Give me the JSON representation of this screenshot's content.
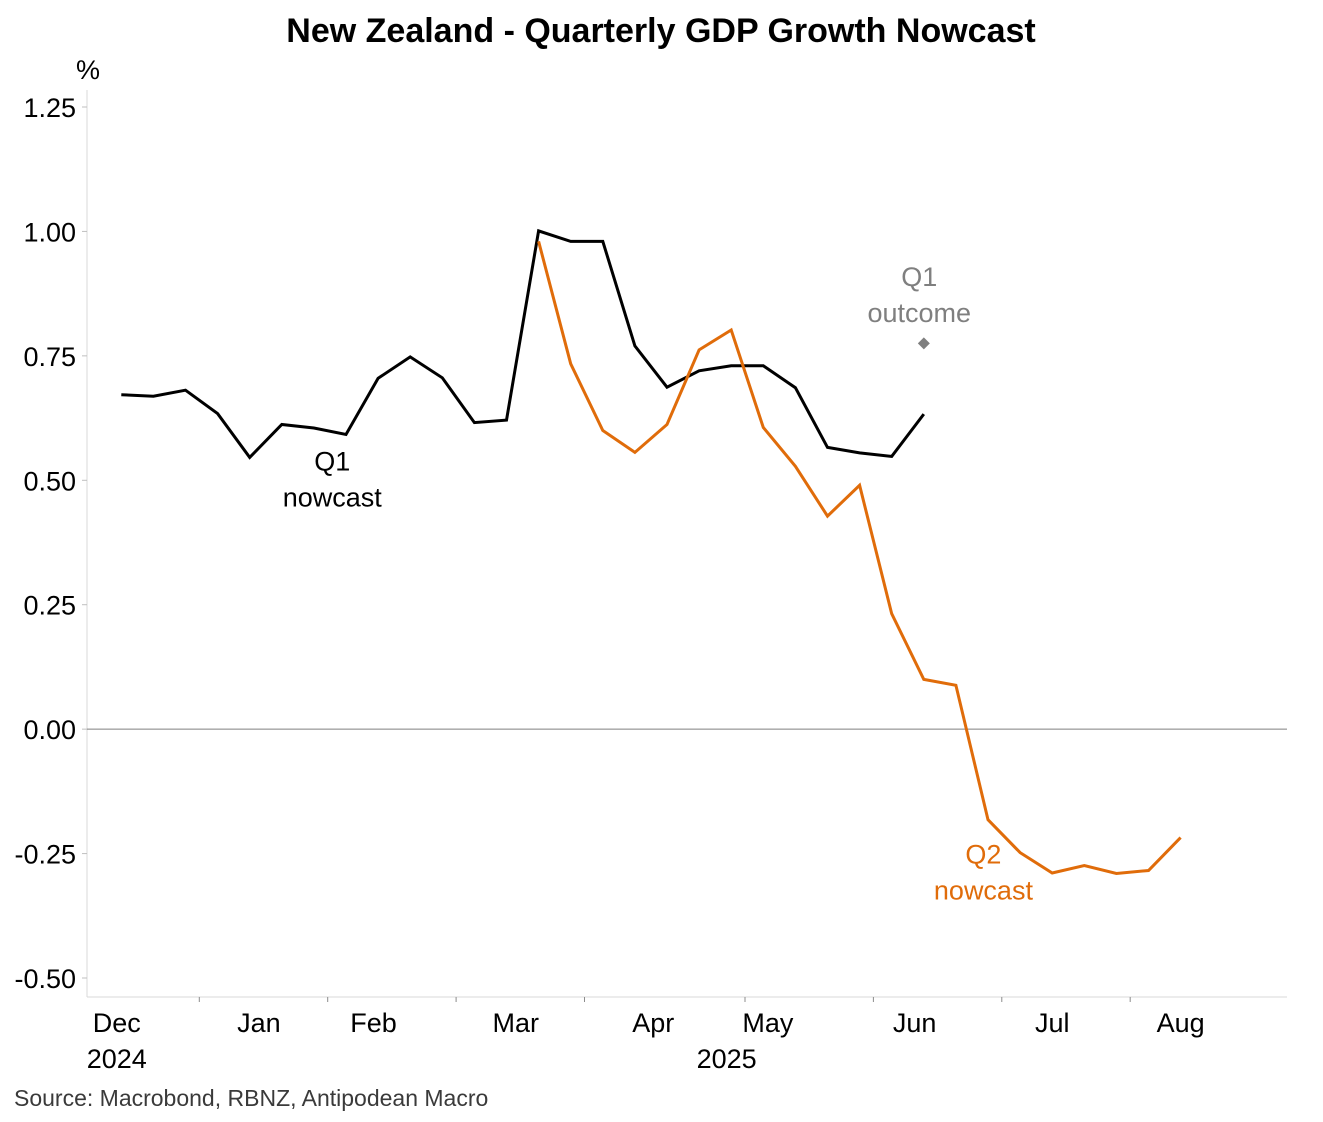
{
  "chart_data": {
    "type": "line",
    "title": "New Zealand - Quarterly GDP Growth Nowcast",
    "ylabel": "%",
    "ylim": [
      -0.5,
      1.25
    ],
    "yticks": [
      "1.25",
      "1.00",
      "0.75",
      "0.50",
      "0.25",
      "0.00",
      "-0.25",
      "-0.50"
    ],
    "ytick_values": [
      1.25,
      1.0,
      0.75,
      0.5,
      0.25,
      0.0,
      -0.25,
      -0.5
    ],
    "xlim_days": [
      0,
      251
    ],
    "xticks": [
      {
        "label": "Dec",
        "day": 3
      },
      {
        "label": "Jan",
        "day": 34
      },
      {
        "label": "Feb",
        "day": 59
      },
      {
        "label": "Mar",
        "day": 90
      },
      {
        "label": "Apr",
        "day": 120
      },
      {
        "label": "May",
        "day": 145
      },
      {
        "label": "Jun",
        "day": 177
      },
      {
        "label": "Jul",
        "day": 207
      },
      {
        "label": "Aug",
        "day": 235
      }
    ],
    "year_labels": [
      {
        "label": "2024",
        "day": 3
      },
      {
        "label": "2025",
        "day": 136
      }
    ],
    "minor_tick_days": [
      21,
      49,
      77,
      105,
      140,
      168,
      196,
      224
    ],
    "series": [
      {
        "name": "Q1 nowcast",
        "color": "#000000",
        "x_days": [
          4,
          11,
          18,
          25,
          32,
          39,
          46,
          53,
          60,
          67,
          74,
          81,
          88,
          95,
          102,
          109,
          116,
          123,
          130,
          137,
          144,
          151,
          158,
          165,
          172
        ],
        "values": [
          0.672,
          0.669,
          0.681,
          0.634,
          0.546,
          0.612,
          0.605,
          0.592,
          0.705,
          0.748,
          0.706,
          0.616,
          0.621,
          1.001,
          0.98,
          0.98,
          0.77,
          0.687,
          0.72,
          0.73,
          0.73,
          0.686,
          0.566,
          0.555,
          0.548
        ]
      },
      {
        "name": "Q2 nowcast",
        "color": "#e06c0a",
        "x_days": [
          95,
          102,
          109,
          116,
          123,
          130,
          137,
          144,
          151,
          158,
          165,
          172,
          179,
          186,
          193,
          200,
          207,
          214,
          221,
          228,
          235
        ],
        "values": [
          0.98,
          0.734,
          0.6,
          0.556,
          0.612,
          0.762,
          0.802,
          0.606,
          0.528,
          0.428,
          0.49,
          0.232,
          0.1,
          0.088,
          -0.182,
          -0.248,
          -0.289,
          -0.274,
          -0.29,
          -0.284,
          -0.218
        ]
      }
    ],
    "q1_last_point": {
      "day": 179,
      "value": 0.633
    },
    "q1_outcome": {
      "day": 179,
      "value": 0.775,
      "color": "#7f7f7f"
    },
    "annotations": [
      {
        "name": "q1-nowcast",
        "lines": [
          "Q1",
          "nowcast"
        ],
        "color": "#000000",
        "day": 50,
        "value": 0.52
      },
      {
        "name": "q1-outcome",
        "lines": [
          "Q1",
          "outcome"
        ],
        "color": "#7f7f7f",
        "day": 178,
        "value": 0.89
      },
      {
        "name": "q2-nowcast",
        "lines": [
          "Q2",
          "nowcast"
        ],
        "color": "#e06c0a",
        "day": 192,
        "value": -0.27
      }
    ],
    "source": "Source: Macrobond, RBNZ, Antipodean Macro"
  }
}
